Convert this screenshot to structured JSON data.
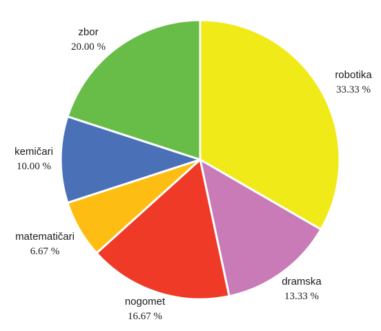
{
  "chart_data": {
    "type": "pie",
    "start_angle_deg": 0,
    "direction": "clockwise",
    "slices": [
      {
        "name": "robotika",
        "value": 33.33,
        "label": "33.33 %",
        "color": "#F0EA19"
      },
      {
        "name": "dramska",
        "value": 13.33,
        "label": "13.33 %",
        "color": "#C97BB8"
      },
      {
        "name": "nogomet",
        "value": 16.67,
        "label": "16.67 %",
        "color": "#EE3A26"
      },
      {
        "name": "matematičari",
        "value": 6.67,
        "label": "6.67 %",
        "color": "#FDBD12"
      },
      {
        "name": "kemičari",
        "value": 10.0,
        "label": "10.00 %",
        "color": "#4A70B8"
      },
      {
        "name": "zbor",
        "value": 20.0,
        "label": "20.00 %",
        "color": "#67BD47"
      }
    ]
  }
}
